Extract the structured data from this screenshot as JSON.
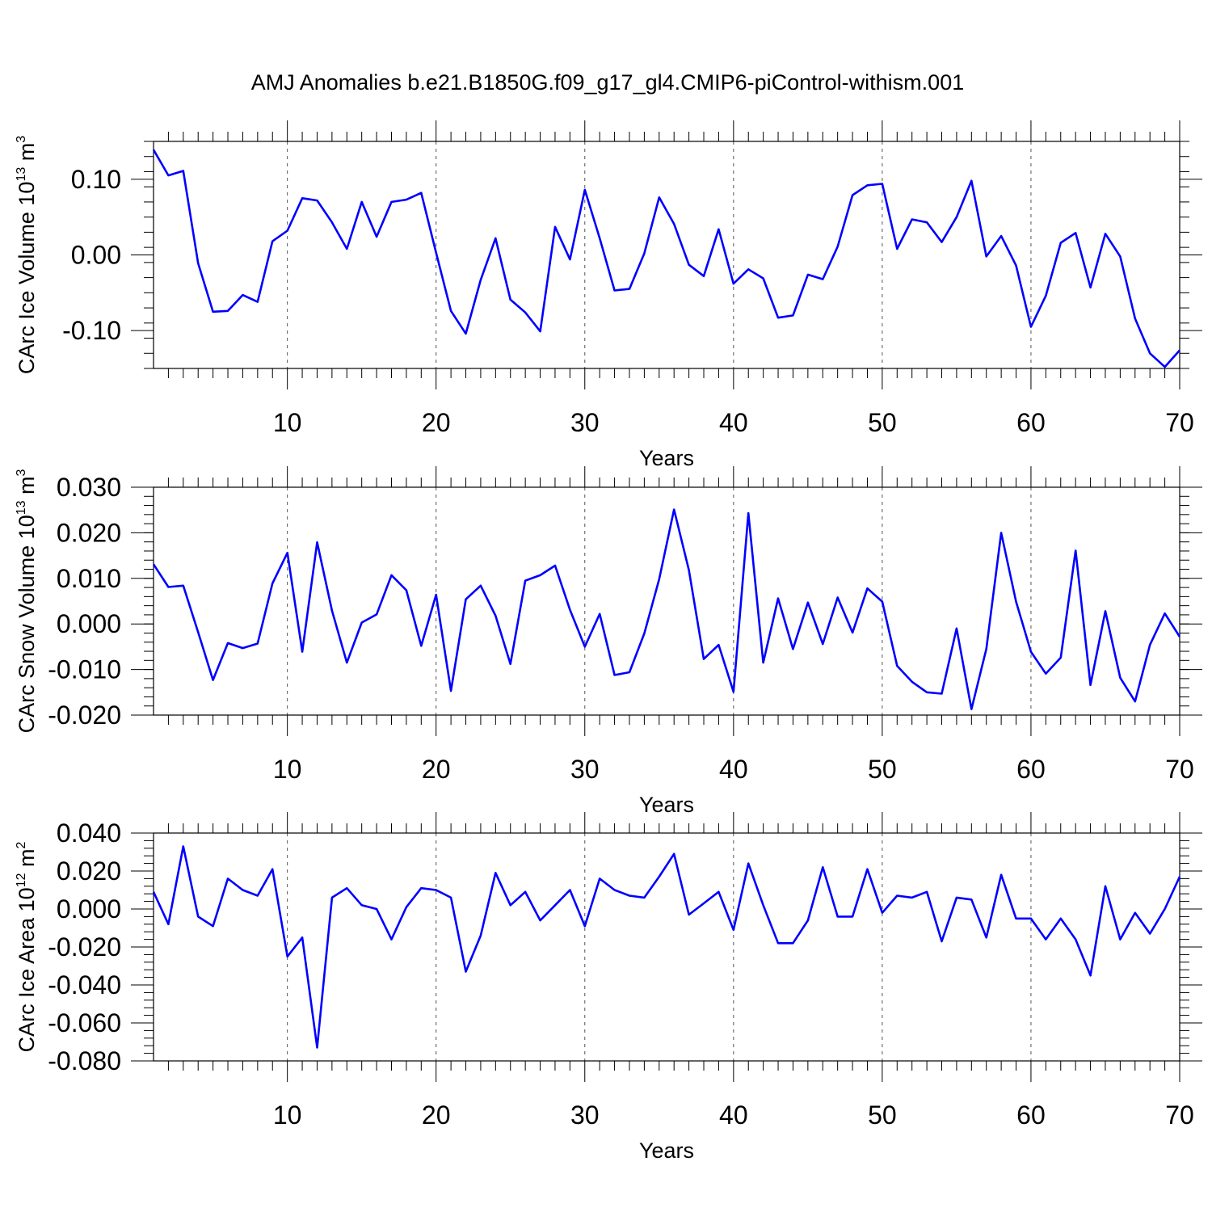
{
  "title": "AMJ Anomalies b.e21.B1850G.f09_g17_gl4.CMIP6-piControl-withism.001",
  "colors": {
    "line": "#0000ff",
    "axis": "#000000",
    "grid": "#555555"
  },
  "chart_data": [
    {
      "type": "line",
      "xlabel": "Years",
      "ylabel_prefix": "CArc Ice Volume 10",
      "ylabel_exp": "13",
      "ylabel_unit": " m",
      "ylabel_unit_exp": "3",
      "xlim": [
        1,
        70
      ],
      "ylim": [
        -0.15,
        0.15
      ],
      "xticks": [
        "10",
        "20",
        "30",
        "40",
        "50",
        "60",
        "70"
      ],
      "yticks": [
        {
          "value": 0.1,
          "label": "0.10"
        },
        {
          "value": 0.0,
          "label": "0.00"
        },
        {
          "value": -0.1,
          "label": "-0.10"
        }
      ],
      "y_minor_step": 0.02,
      "grid": "vertical dashed at x = 10, 20, 30, 40, 50, 60",
      "x": [
        1,
        2,
        3,
        4,
        5,
        6,
        7,
        8,
        9,
        10,
        11,
        12,
        13,
        14,
        15,
        16,
        17,
        18,
        19,
        20,
        21,
        22,
        23,
        24,
        25,
        26,
        27,
        28,
        29,
        30,
        31,
        32,
        33,
        34,
        35,
        36,
        37,
        38,
        39,
        40,
        41,
        42,
        43,
        44,
        45,
        46,
        47,
        48,
        49,
        50,
        51,
        52,
        53,
        54,
        55,
        56,
        57,
        58,
        59,
        60,
        61,
        62,
        63,
        64,
        65,
        66,
        67,
        68,
        69,
        70
      ],
      "values": [
        0.139,
        0.105,
        0.111,
        -0.011,
        -0.075,
        -0.074,
        -0.053,
        -0.062,
        0.018,
        0.032,
        0.075,
        0.072,
        0.043,
        0.008,
        0.07,
        0.024,
        0.07,
        0.073,
        0.082,
        0.003,
        -0.074,
        -0.104,
        -0.033,
        0.022,
        -0.059,
        -0.076,
        -0.101,
        0.037,
        -0.006,
        0.086,
        0.022,
        -0.047,
        -0.045,
        0.002,
        0.076,
        0.041,
        -0.013,
        -0.028,
        0.034,
        -0.038,
        -0.019,
        -0.031,
        -0.083,
        -0.08,
        -0.026,
        -0.032,
        0.011,
        0.079,
        0.092,
        0.094,
        0.008,
        0.047,
        0.043,
        0.017,
        0.05,
        0.098,
        -0.002,
        0.025,
        -0.014,
        -0.095,
        -0.054,
        0.016,
        0.029,
        -0.043,
        0.028,
        -0.002,
        -0.084,
        -0.13,
        -0.148,
        -0.126
      ]
    },
    {
      "type": "line",
      "xlabel": "Years",
      "ylabel_prefix": "CArc Snow Volume 10",
      "ylabel_exp": "13",
      "ylabel_unit": " m",
      "ylabel_unit_exp": "3",
      "xlim": [
        1,
        70
      ],
      "ylim": [
        -0.02,
        0.03
      ],
      "xticks": [
        "10",
        "20",
        "30",
        "40",
        "50",
        "60",
        "70"
      ],
      "yticks": [
        {
          "value": 0.03,
          "label": "0.030"
        },
        {
          "value": 0.02,
          "label": "0.020"
        },
        {
          "value": 0.01,
          "label": "0.010"
        },
        {
          "value": 0.0,
          "label": "0.000"
        },
        {
          "value": -0.01,
          "label": "-0.010"
        },
        {
          "value": -0.02,
          "label": "-0.020"
        }
      ],
      "y_minor_step": 0.002,
      "grid": "vertical dashed at x = 10, 20, 30, 40, 50, 60",
      "x": [
        1,
        2,
        3,
        4,
        5,
        6,
        7,
        8,
        9,
        10,
        11,
        12,
        13,
        14,
        15,
        16,
        17,
        18,
        19,
        20,
        21,
        22,
        23,
        24,
        25,
        26,
        27,
        28,
        29,
        30,
        31,
        32,
        33,
        34,
        35,
        36,
        37,
        38,
        39,
        40,
        41,
        42,
        43,
        44,
        45,
        46,
        47,
        48,
        49,
        50,
        51,
        52,
        53,
        54,
        55,
        56,
        57,
        58,
        59,
        60,
        61,
        62,
        63,
        64,
        65,
        66,
        67,
        68,
        69,
        70
      ],
      "values": [
        0.0131,
        0.0081,
        0.0084,
        -0.0018,
        -0.0123,
        -0.0042,
        -0.0053,
        -0.0043,
        0.0089,
        0.0156,
        -0.0061,
        0.0179,
        0.0029,
        -0.0085,
        0.0003,
        0.0021,
        0.0107,
        0.0074,
        -0.0048,
        0.0064,
        -0.0147,
        0.0054,
        0.0084,
        0.0018,
        -0.0088,
        0.0095,
        0.0107,
        0.0128,
        0.0031,
        -0.005,
        0.0022,
        -0.0112,
        -0.0106,
        -0.0021,
        0.0098,
        0.0251,
        0.0118,
        -0.0077,
        -0.0046,
        -0.0149,
        0.0243,
        -0.0085,
        0.0056,
        -0.0055,
        0.0047,
        -0.0044,
        0.0058,
        -0.0019,
        0.0078,
        0.0049,
        -0.0092,
        -0.0127,
        -0.015,
        -0.0153,
        -0.001,
        -0.0187,
        -0.0055,
        0.02,
        0.0049,
        -0.0061,
        -0.0109,
        -0.0074,
        0.0161,
        -0.0134,
        0.0028,
        -0.0118,
        -0.017,
        -0.0046,
        0.0023,
        -0.0028
      ]
    },
    {
      "type": "line",
      "xlabel": "Years",
      "ylabel_prefix": "CArc Ice Area 10",
      "ylabel_exp": "12",
      "ylabel_unit": " m",
      "ylabel_unit_exp": "2",
      "xlim": [
        1,
        70
      ],
      "ylim": [
        -0.08,
        0.04
      ],
      "xticks": [
        "10",
        "20",
        "30",
        "40",
        "50",
        "60",
        "70"
      ],
      "yticks": [
        {
          "value": 0.04,
          "label": "0.040"
        },
        {
          "value": 0.02,
          "label": "0.020"
        },
        {
          "value": 0.0,
          "label": "0.000"
        },
        {
          "value": -0.02,
          "label": "-0.020"
        },
        {
          "value": -0.04,
          "label": "-0.040"
        },
        {
          "value": -0.06,
          "label": "-0.060"
        },
        {
          "value": -0.08,
          "label": "-0.080"
        }
      ],
      "y_minor_step": 0.004,
      "grid": "vertical dashed at x = 10, 20, 30, 40, 50, 60",
      "x": [
        1,
        2,
        3,
        4,
        5,
        6,
        7,
        8,
        9,
        10,
        11,
        12,
        13,
        14,
        15,
        16,
        17,
        18,
        19,
        20,
        21,
        22,
        23,
        24,
        25,
        26,
        27,
        28,
        29,
        30,
        31,
        32,
        33,
        34,
        35,
        36,
        37,
        38,
        39,
        40,
        41,
        42,
        43,
        44,
        45,
        46,
        47,
        48,
        49,
        50,
        51,
        52,
        53,
        54,
        55,
        56,
        57,
        58,
        59,
        60,
        61,
        62,
        63,
        64,
        65,
        66,
        67,
        68,
        69,
        70
      ],
      "values": [
        0.009,
        -0.008,
        0.033,
        -0.004,
        -0.009,
        0.016,
        0.01,
        0.007,
        0.021,
        -0.025,
        -0.015,
        -0.073,
        0.006,
        0.011,
        0.002,
        0.0,
        -0.016,
        0.001,
        0.011,
        0.01,
        0.006,
        -0.033,
        -0.014,
        0.019,
        0.002,
        0.009,
        -0.006,
        0.002,
        0.01,
        -0.009,
        0.016,
        0.01,
        0.007,
        0.006,
        0.017,
        0.029,
        -0.003,
        0.003,
        0.009,
        -0.011,
        0.024,
        0.002,
        -0.018,
        -0.018,
        -0.006,
        0.022,
        -0.004,
        -0.004,
        0.021,
        -0.002,
        0.007,
        0.006,
        0.009,
        -0.017,
        0.006,
        0.005,
        -0.015,
        0.018,
        -0.005,
        -0.005,
        -0.016,
        -0.005,
        -0.016,
        -0.035,
        0.012,
        -0.016,
        -0.002,
        -0.013,
        0.0,
        0.017
      ]
    }
  ]
}
